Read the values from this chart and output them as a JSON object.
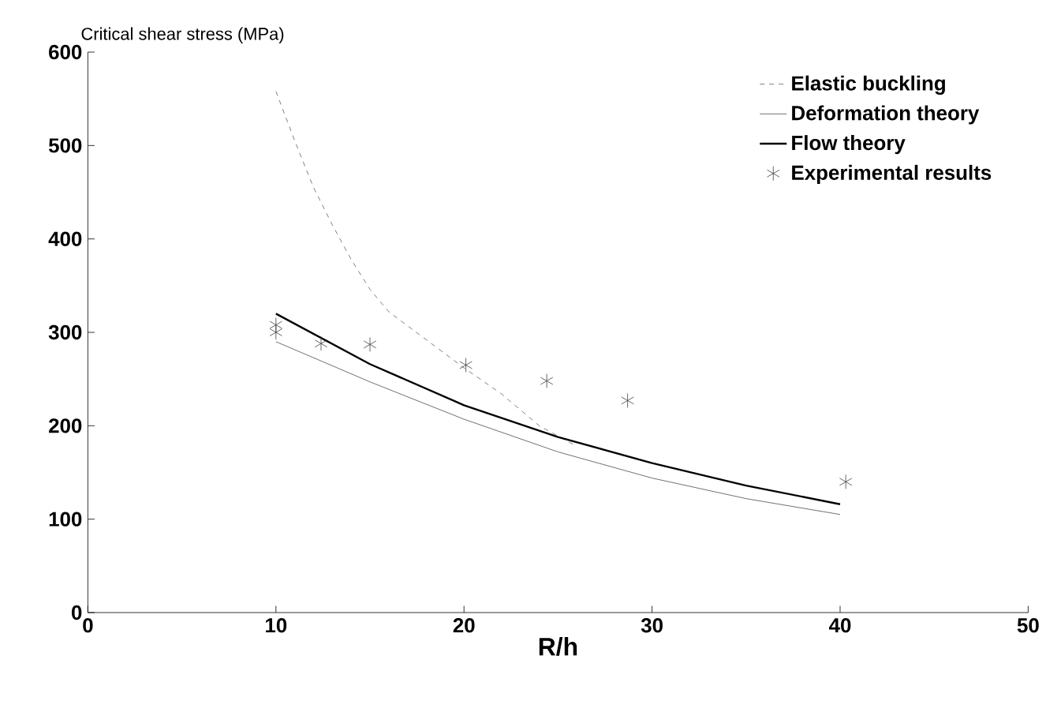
{
  "chart_data": {
    "type": "line",
    "ylabel": "Critical shear stress (MPa)",
    "xlabel": "R/h",
    "xlim": [
      0,
      50
    ],
    "xticks": [
      0,
      10,
      20,
      30,
      40,
      50
    ],
    "ylim": [
      0,
      600
    ],
    "yticks": [
      0,
      100,
      200,
      300,
      400,
      500,
      600
    ],
    "grid": false,
    "legend": "top right",
    "series": [
      {
        "name": "Elastic buckling",
        "line_style": "dashed",
        "color": "#808080",
        "x": [
          10,
          11,
          12,
          13,
          14,
          15,
          16,
          18,
          20,
          22,
          24,
          26
        ],
        "values": [
          558,
          505,
          455,
          415,
          378,
          346,
          322,
          292,
          262,
          234,
          200,
          178
        ]
      },
      {
        "name": "Deformation theory",
        "line_style": "solid",
        "color": "#707070",
        "x": [
          10,
          15,
          20,
          25,
          30,
          35,
          40
        ],
        "values": [
          290,
          247,
          207,
          172,
          144,
          122,
          105
        ]
      },
      {
        "name": "Flow theory",
        "line_style": "solid",
        "color": "#000000",
        "x": [
          10,
          15,
          20,
          25,
          30,
          35,
          40
        ],
        "values": [
          320,
          266,
          222,
          188,
          160,
          136,
          116
        ]
      },
      {
        "name": "Experimental results",
        "type": "scatter",
        "marker": "cross",
        "color": "#404040",
        "x": [
          10,
          10,
          12.4,
          15.0,
          20.1,
          24.4,
          28.7,
          40.3
        ],
        "values": [
          308,
          300,
          288,
          287,
          265,
          248,
          227,
          140
        ]
      }
    ]
  }
}
